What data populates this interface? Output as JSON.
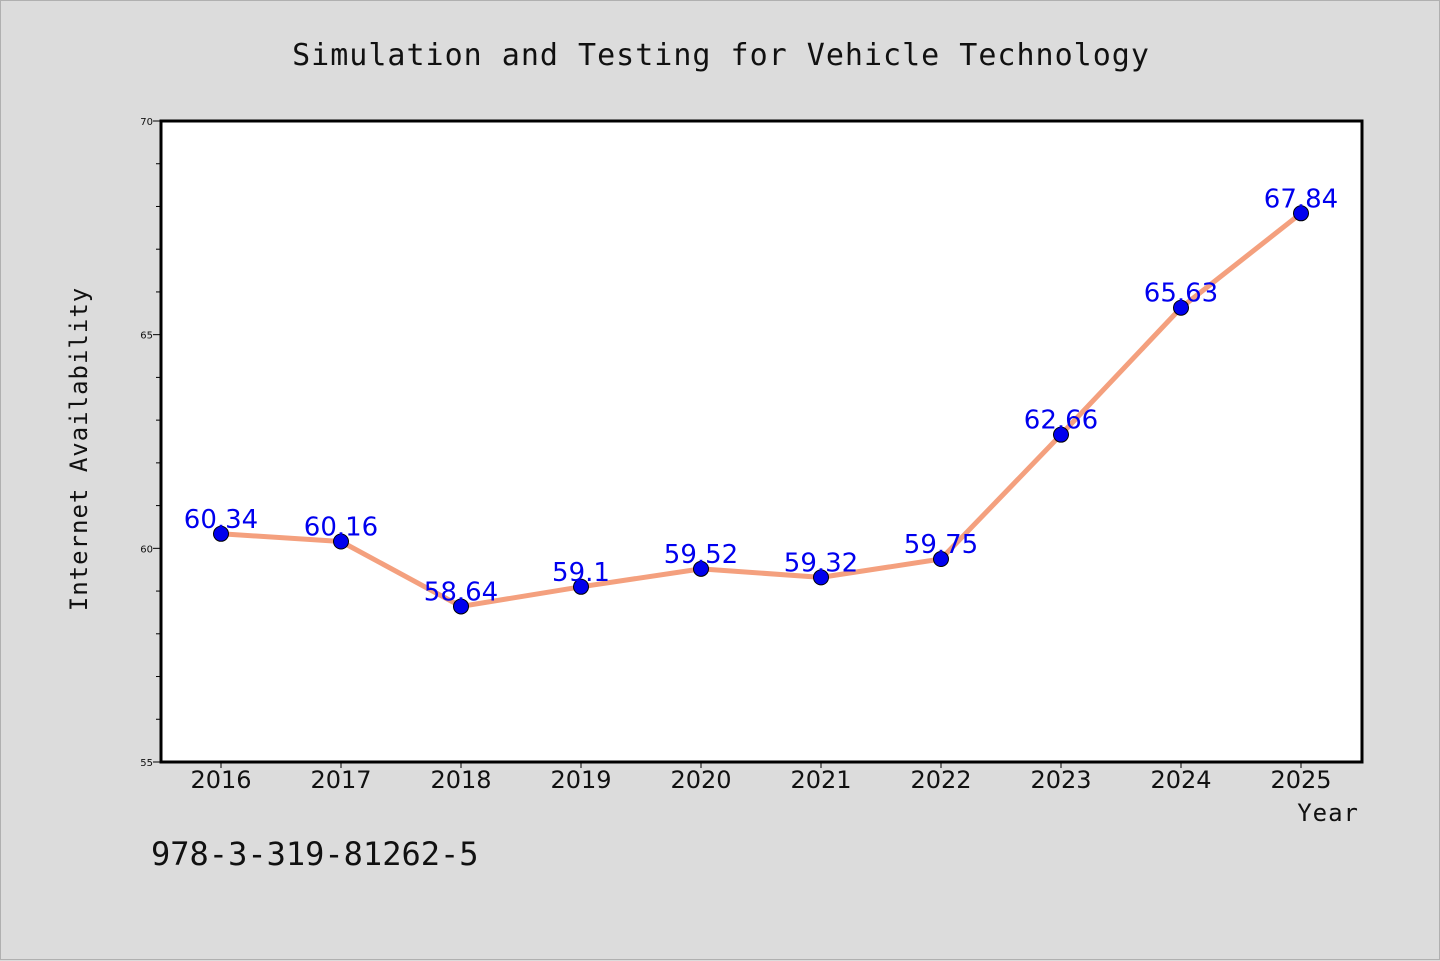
{
  "chart_data": {
    "type": "line",
    "title": "Simulation and Testing for Vehicle Technology",
    "xlabel": "Year",
    "ylabel": "Internet Availability",
    "categories": [
      "2016",
      "2017",
      "2018",
      "2019",
      "2020",
      "2021",
      "2022",
      "2023",
      "2024",
      "2025"
    ],
    "series": [
      {
        "values": [
          60.34,
          60.16,
          58.64,
          59.1,
          59.52,
          59.32,
          59.75,
          62.66,
          65.63,
          67.84
        ],
        "labels": [
          "60.34",
          "60.16",
          "58.64",
          "59.1",
          "59.52",
          "59.32",
          "59.75",
          "62.66",
          "65.63",
          "67.84"
        ],
        "line_color": "#f4a07e",
        "marker_color": "#0000ee"
      }
    ],
    "ylim": [
      55,
      70
    ],
    "yticks": [
      "55",
      "60",
      "65",
      "70"
    ],
    "grid": false,
    "legend": "none"
  },
  "watermark": "978-3-319-81262-5",
  "colors": {
    "background": "#dcdcdc",
    "plot_area": "#ffffff",
    "label_color": "#0000ee"
  }
}
